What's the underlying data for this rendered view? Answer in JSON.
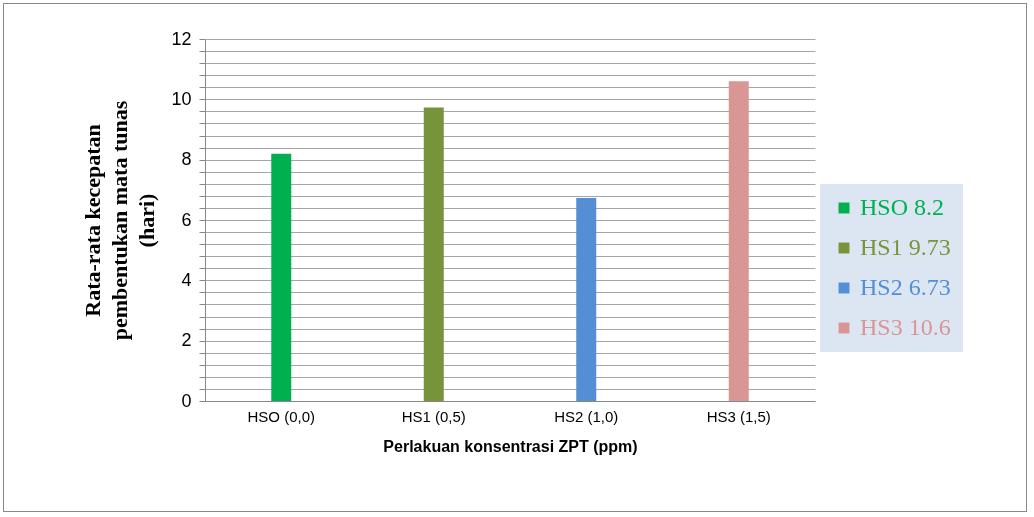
{
  "chart_data": {
    "type": "bar",
    "categories": [
      "HSO (0,0)",
      "HS1 (0,5)",
      "HS2 (1,0)",
      "HS3 (1,5)"
    ],
    "series": [
      {
        "name": "HSO 8.2",
        "color": "#00b050",
        "values": [
          8.2,
          null,
          null,
          null
        ]
      },
      {
        "name": "HS1 9.73",
        "color": "#77933c",
        "values": [
          null,
          9.73,
          null,
          null
        ]
      },
      {
        "name": "HS2 6.73",
        "color": "#558ed5",
        "values": [
          null,
          null,
          6.73,
          null
        ]
      },
      {
        "name": "HS3 10.6",
        "color": "#d99694",
        "values": [
          null,
          null,
          null,
          10.6
        ]
      }
    ],
    "xlabel": "Perlakuan konsentrasi ZPT (ppm)",
    "ylabel": "Rata-rata kecepatan\npembentukan  mata tunas\n(hari)",
    "ylim": [
      0,
      12
    ],
    "yticks": [
      0,
      {
        "value": 0.4,
        "label": null
      },
      {
        "value": 0.8,
        "label": null
      },
      {
        "value": 1.2,
        "label": null
      },
      {
        "value": 1.6,
        "label": null
      },
      2,
      {
        "value": 2.4,
        "label": null
      },
      {
        "value": 2.8,
        "label": null
      },
      {
        "value": 3.2,
        "label": null
      },
      {
        "value": 3.6,
        "label": null
      },
      4,
      {
        "value": 4.4,
        "label": null
      },
      {
        "value": 4.8,
        "label": null
      },
      {
        "value": 5.2,
        "label": null
      },
      {
        "value": 5.6,
        "label": null
      },
      6,
      {
        "value": 6.4,
        "label": null
      },
      {
        "value": 6.8,
        "label": null
      },
      {
        "value": 7.2,
        "label": null
      },
      {
        "value": 7.6,
        "label": null
      },
      8,
      {
        "value": 8.4,
        "label": null
      },
      {
        "value": 8.8,
        "label": null
      },
      {
        "value": 9.2,
        "label": null
      },
      {
        "value": 9.6,
        "label": null
      },
      10,
      {
        "value": 10.4,
        "label": null
      },
      {
        "value": 10.8,
        "label": null
      },
      {
        "value": 11.2,
        "label": null
      },
      {
        "value": 11.6,
        "label": null
      },
      12
    ],
    "grid": "y",
    "legend": "right"
  }
}
